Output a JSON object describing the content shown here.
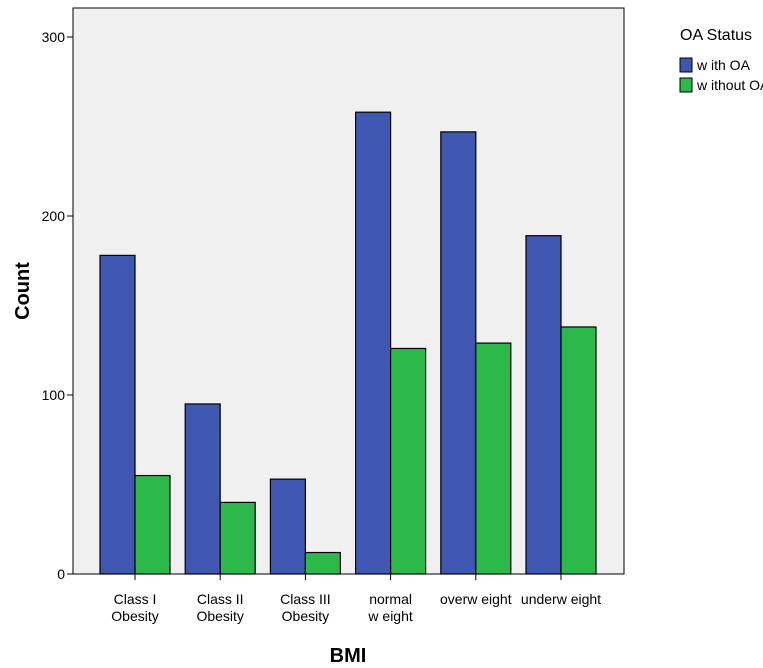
{
  "chart_data": {
    "type": "bar",
    "xlabel": "BMI",
    "ylabel": "Count",
    "ylim": [
      0,
      300
    ],
    "yticks": [
      0,
      100,
      200,
      300
    ],
    "grid": false,
    "legend_position": "top-right",
    "legend_title": "OA Status",
    "categories": [
      [
        "Class I",
        "Obesity"
      ],
      [
        "Class II",
        "Obesity"
      ],
      [
        "Class III",
        "Obesity"
      ],
      [
        "normal",
        "w eight"
      ],
      [
        "overw eight"
      ],
      [
        "underw eight"
      ]
    ],
    "series": [
      {
        "name": "w ith OA",
        "color": "#3f57b0",
        "values": [
          178,
          95,
          53,
          258,
          247,
          189
        ]
      },
      {
        "name": "w ithout OA",
        "color": "#2db84a",
        "values": [
          55,
          40,
          12,
          126,
          129,
          138
        ]
      }
    ],
    "plot_background": "#f0f0f0"
  }
}
